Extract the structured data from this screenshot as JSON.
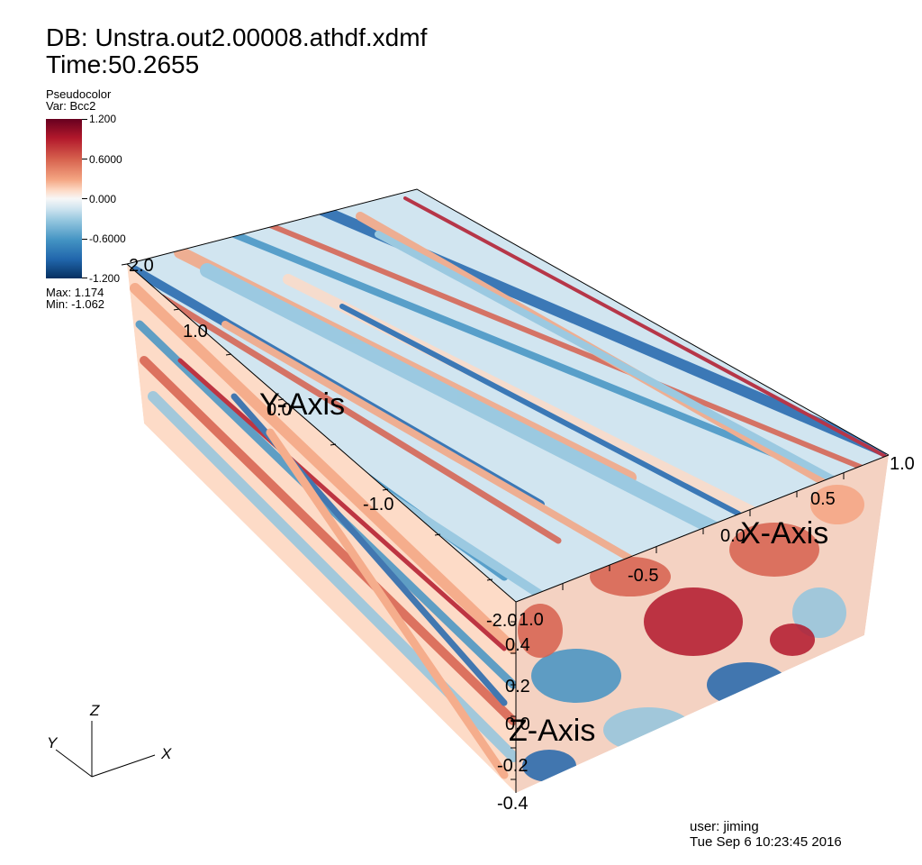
{
  "header": {
    "db": "DB: Unstra.out2.00008.athdf.xdmf",
    "time": "Time:50.2655"
  },
  "legend": {
    "title": "Pseudocolor",
    "var": "Var: Bcc2",
    "ticks": [
      "1.200",
      "0.6000",
      "0.000",
      "-0.6000",
      "-1.200"
    ],
    "max": "Max:  1.174",
    "min": "Min: -1.062"
  },
  "axes": {
    "x_title": "X-Axis",
    "y_title": "Y-Axis",
    "z_title": "Z-Axis",
    "x_ticks": [
      "-0.5",
      "0.0",
      "0.5",
      "1.0"
    ],
    "y_ticks": [
      "2.0",
      "1.0",
      "0.0",
      "-1.0",
      "-2.0"
    ],
    "z_ticks": [
      "1.0",
      "0.4",
      "0.2",
      "0.0",
      "-0.2",
      "-0.4"
    ]
  },
  "triad": {
    "x": "X",
    "y": "Y",
    "z": "Z"
  },
  "footer": {
    "user": "user: jiming",
    "date": "Tue Sep  6 10:23:45 2016"
  },
  "colors": {
    "red": "#b2182b",
    "light_red": "#f4a582",
    "white": "#f7f7f7",
    "light_blue": "#92c5de",
    "blue": "#2166ac"
  }
}
